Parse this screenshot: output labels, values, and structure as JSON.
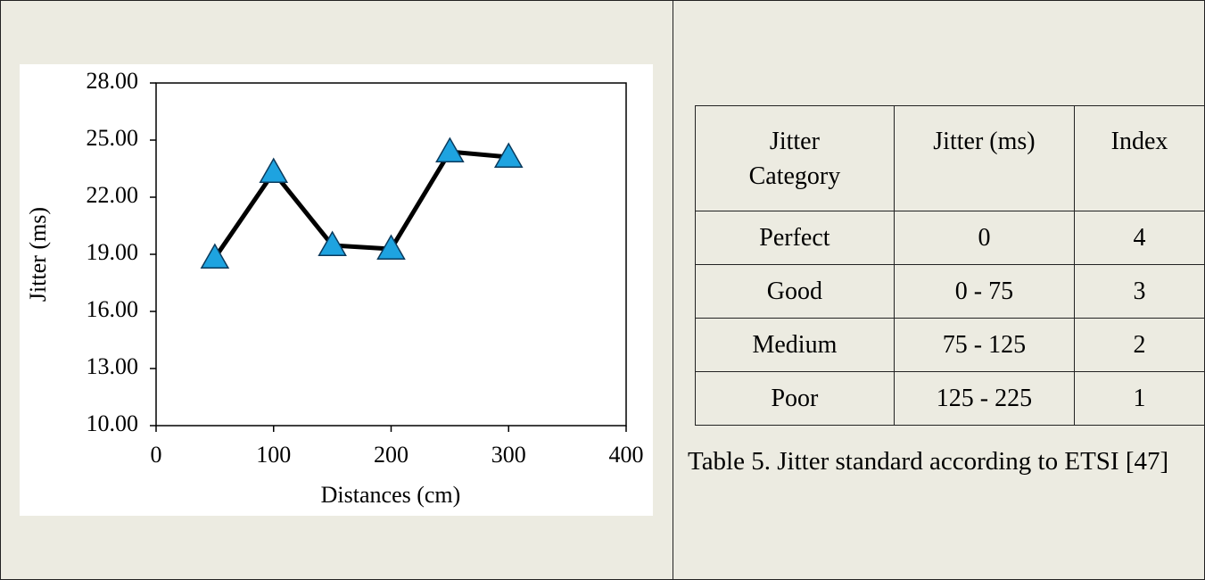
{
  "chart_data": {
    "type": "line",
    "x_label": "Distances (cm)",
    "y_label": "Jitter (ms)",
    "x": [
      50,
      100,
      150,
      200,
      250,
      300
    ],
    "series": [
      {
        "color": "#1ea3e0",
        "values": [
          18.81,
          23.31,
          19.47,
          19.28,
          24.39,
          24.11
        ]
      }
    ],
    "xlim": [
      0,
      400
    ],
    "xticks": [
      0,
      100,
      200,
      300,
      400
    ],
    "ylim": [
      10,
      28
    ],
    "yticks": [
      {
        "value": 10,
        "label": "10.00"
      },
      {
        "value": 13,
        "label": "13.00"
      },
      {
        "value": 16,
        "label": "16.00"
      },
      {
        "value": 19,
        "label": "19.00"
      },
      {
        "value": 22,
        "label": "22.00"
      },
      {
        "value": 25,
        "label": "25.00"
      },
      {
        "value": 28,
        "label": "28.00"
      }
    ],
    "marker": "triangle",
    "line_color": "#000000"
  },
  "table": {
    "header": [
      "Jitter Category",
      "Jitter (ms)",
      "Index"
    ],
    "rows": [
      [
        "Perfect",
        "0",
        "4"
      ],
      [
        "Good",
        "0 - 75",
        "3"
      ],
      [
        "Medium",
        "75 - 125",
        "2"
      ],
      [
        "Poor",
        "125 - 225",
        "1"
      ]
    ],
    "caption": "Table 5. Jitter standard according to ETSI [47]"
  }
}
